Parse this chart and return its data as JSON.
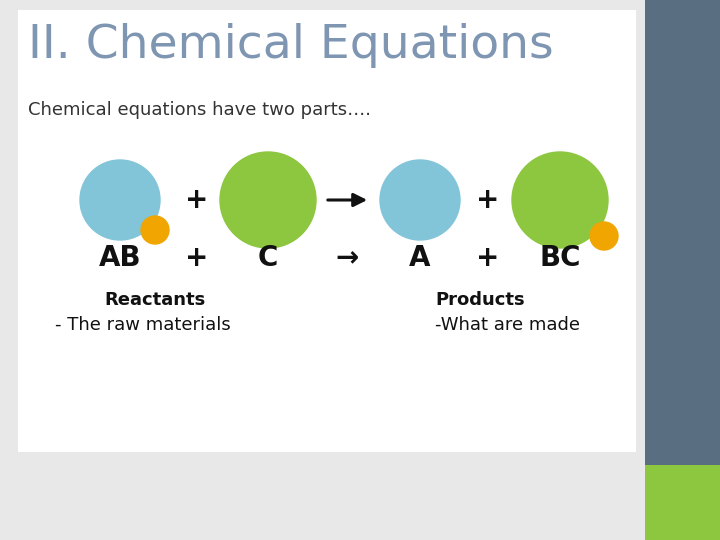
{
  "title": "II. Chemical Equations",
  "title_color": "#7f96b2",
  "subtitle": "Chemical equations have two parts….",
  "subtitle_color": "#333333",
  "bg_color": "#e8e8e8",
  "white_panel_color": "#ffffff",
  "right_panel_color": "#5a6e82",
  "right_accent_color": "#8dc63f",
  "reactants_label": "Reactants",
  "reactants_sublabel": "- The raw materials",
  "products_label": "Products",
  "products_sublabel": "-What are made",
  "label_color": "#111111",
  "circle_blue": "#82c4d8",
  "circle_green": "#8dc63f",
  "circle_orange": "#f0a500",
  "arrow_color": "#111111"
}
